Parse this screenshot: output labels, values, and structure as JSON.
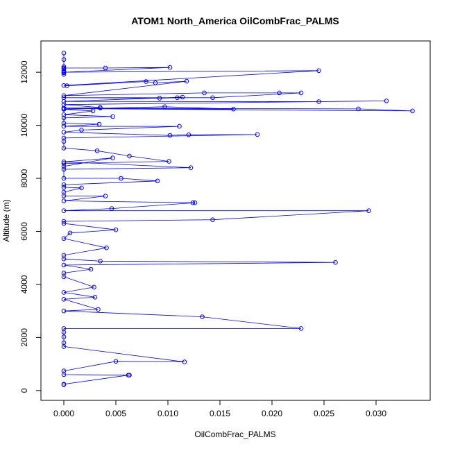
{
  "chart_data": {
    "type": "scatter",
    "title": "ATOM1 North_America OilCombFrac_PALMS",
    "xlabel": "OilCombFrac_PALMS",
    "ylabel": "Altitude (m)",
    "xlim": [
      -0.0022,
      0.0352
    ],
    "ylim": [
      -370,
      13180
    ],
    "x_ticks": [
      0.0,
      0.005,
      0.01,
      0.015,
      0.02,
      0.025,
      0.03
    ],
    "x_tick_labels": [
      "0.000",
      "0.005",
      "0.010",
      "0.015",
      "0.020",
      "0.025",
      "0.030"
    ],
    "y_ticks": [
      0,
      2000,
      4000,
      6000,
      8000,
      10000,
      12000
    ],
    "y_tick_labels": [
      "0",
      "2000",
      "4000",
      "6000",
      "8000",
      "10000",
      "12000"
    ],
    "grid": false,
    "series": [
      {
        "color": "#0000ff",
        "marker": "open-circle",
        "connected": true,
        "x": [
          0.0,
          0.0,
          0.0,
          0.0,
          0.0,
          0.0,
          0.0,
          0.0,
          0.0,
          0.004,
          0.0102,
          0.0,
          0.0245,
          0.0,
          0.0003,
          0.0079,
          0.0088,
          0.0118,
          0.0,
          0.0135,
          0.0207,
          0.0228,
          0.0143,
          0.0,
          0.0092,
          0.0109,
          0.0114,
          0.0,
          0.0245,
          0.031,
          0.0,
          0.0035,
          0.0035,
          0.0,
          0.0283,
          0.0335,
          0.0,
          0.0163,
          0.0097,
          0.0,
          0.0028,
          0.0,
          0.0047,
          0.0,
          0.0,
          0.0034,
          0.0,
          0.0111,
          0.0017,
          0.0,
          0.0102,
          0.012,
          0.0186,
          0.0,
          0.0,
          0.0,
          0.0032,
          0.0063,
          0.0101,
          0.0,
          0.0,
          0.0047,
          0.0,
          0.0122,
          0.0,
          0.0,
          0.0055,
          0.009,
          0.0,
          0.0,
          0.0017,
          0.0,
          0.0,
          0.004,
          0.0,
          0.0124,
          0.0126,
          0.0046,
          0.0,
          0.0293,
          0.0143,
          0.0,
          0.0,
          0.005,
          0.0006,
          0.0,
          0.0041,
          0.0,
          0.0,
          0.0035,
          0.0261,
          0.0,
          0.0026,
          0.0,
          0.0,
          0.0029,
          0.0,
          0.003,
          0.0,
          0.0033,
          0.0,
          0.0133,
          0.0228,
          0.0,
          0.0,
          0.0,
          0.0,
          0.0,
          0.0116,
          0.005,
          0.0,
          0.0,
          0.0063,
          0.0062,
          0.0,
          0.0
        ],
        "y": [
          12720,
          12480,
          12210,
          12120,
          12040,
          11980,
          11920,
          12160,
          12160,
          12160,
          12180,
          12000,
          12060,
          11500,
          11490,
          11650,
          11600,
          11660,
          11120,
          11220,
          11220,
          11220,
          11040,
          11040,
          11020,
          11040,
          11060,
          10900,
          10890,
          10920,
          10780,
          10670,
          10650,
          10650,
          10620,
          10540,
          10630,
          10610,
          10700,
          10600,
          10540,
          10400,
          10330,
          10280,
          10080,
          10040,
          9960,
          9960,
          9820,
          9740,
          9620,
          9640,
          9650,
          9520,
          9390,
          9140,
          9040,
          8840,
          8640,
          8560,
          8450,
          8770,
          8620,
          8400,
          8340,
          8000,
          8000,
          7900,
          7760,
          7660,
          7640,
          7480,
          7340,
          7330,
          7150,
          7080,
          7080,
          6860,
          6780,
          6780,
          6440,
          6380,
          6300,
          6060,
          5940,
          5730,
          5380,
          5100,
          4960,
          4880,
          4830,
          4730,
          4570,
          4430,
          4290,
          3900,
          3700,
          3520,
          3440,
          3060,
          3000,
          2780,
          2340,
          2340,
          2200,
          2020,
          1800,
          1660,
          1080,
          1100,
          740,
          600,
          580,
          580,
          240,
          220
        ]
      }
    ]
  }
}
